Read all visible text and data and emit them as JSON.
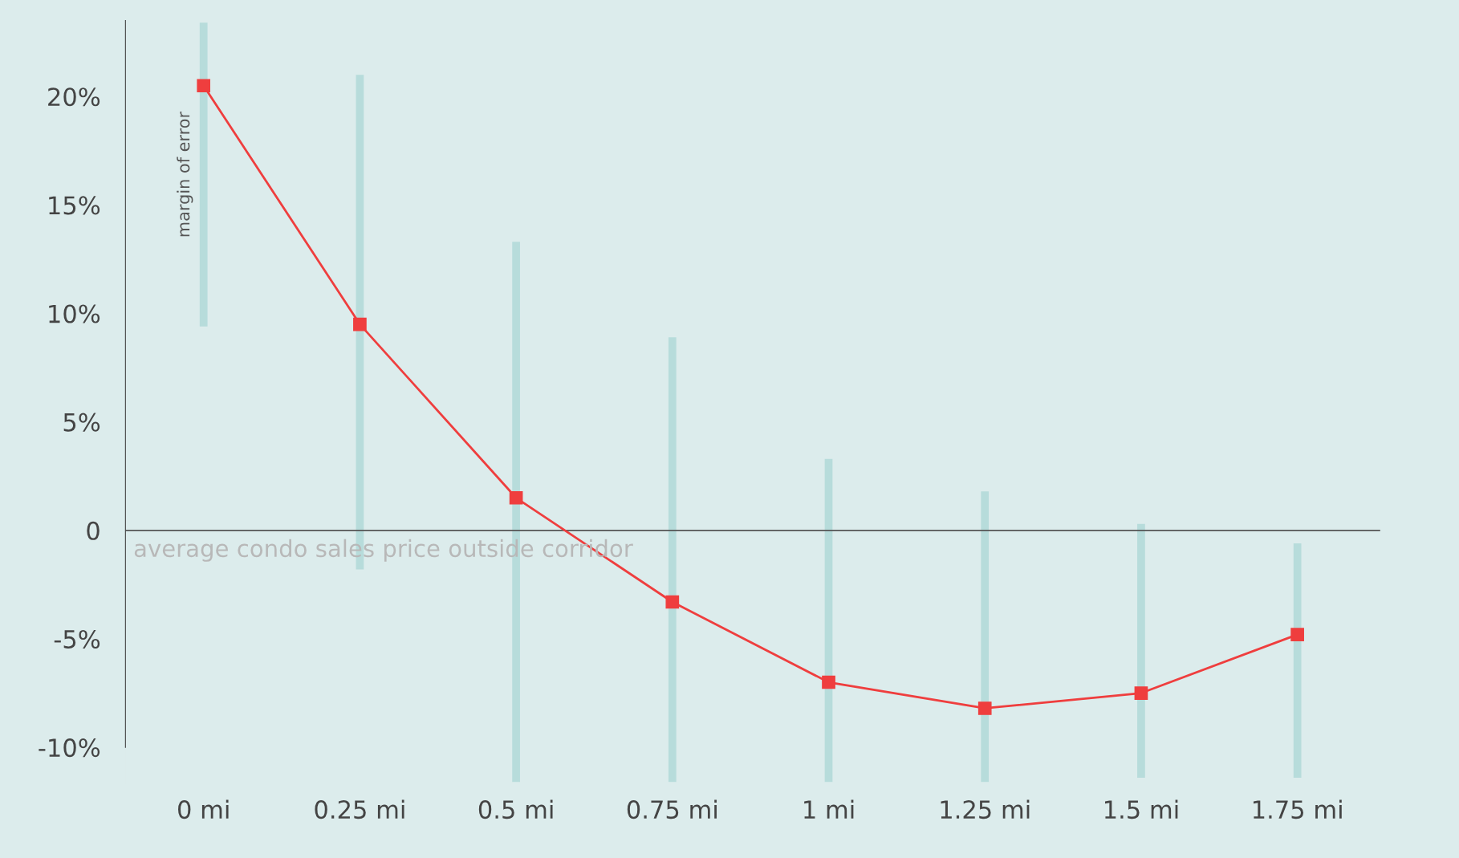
{
  "chart_data": {
    "type": "line",
    "categories": [
      "0 mi",
      "0.25 mi",
      "0.5 mi",
      "0.75 mi",
      "1 mi",
      "1.25 mi",
      "1.5 mi",
      "1.75 mi"
    ],
    "series": [
      {
        "color": "#ef3e3e",
        "values": [
          20.5,
          9.5,
          1.5,
          -3.3,
          -7.0,
          -8.2,
          -7.5,
          -4.8
        ],
        "errors": [
          [
            9.4,
            23.4
          ],
          [
            -1.8,
            21.0
          ],
          [
            -11.6,
            13.3
          ],
          [
            -11.6,
            8.9
          ],
          [
            -11.6,
            3.3
          ],
          [
            -11.6,
            1.8
          ],
          [
            -11.4,
            0.3
          ],
          [
            -11.4,
            -0.6
          ]
        ]
      }
    ],
    "ylim": [
      -11.7,
      23.5
    ],
    "yticks": [
      {
        "value": -10,
        "label": "-10%"
      },
      {
        "value": -5,
        "label": "-5%"
      },
      {
        "value": 0,
        "label": "0"
      },
      {
        "value": 5,
        "label": "5%"
      },
      {
        "value": 10,
        "label": "10%"
      },
      {
        "value": 15,
        "label": "15%"
      },
      {
        "value": 20,
        "label": "20%"
      }
    ],
    "ref_lines": [
      {
        "axis": "y",
        "value": 0,
        "label": "average condo sales price outside corridor",
        "color": "#555555"
      }
    ],
    "annotations": [
      "margin of error"
    ],
    "marker": "square",
    "line_style": "solid",
    "grid": false,
    "legend": false
  }
}
